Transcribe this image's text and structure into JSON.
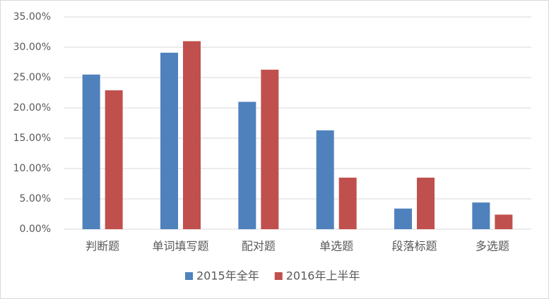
{
  "chart_data": {
    "type": "bar",
    "categories": [
      "判断题",
      "单词填写题",
      "配对题",
      "单选题",
      "段落标题",
      "多选题"
    ],
    "series": [
      {
        "name": "2015年全年",
        "color": "#4f81bd",
        "values": [
          25.5,
          29.1,
          21.0,
          16.3,
          3.4,
          4.4
        ]
      },
      {
        "name": "2016年上半年",
        "color": "#c0504d",
        "values": [
          22.9,
          31.0,
          26.3,
          8.5,
          8.5,
          2.4
        ]
      }
    ],
    "ylim": [
      0,
      35
    ],
    "yticks": [
      {
        "value": 0,
        "label": "0.00%"
      },
      {
        "value": 5,
        "label": "5.00%"
      },
      {
        "value": 10,
        "label": "10.00%"
      },
      {
        "value": 15,
        "label": "15.00%"
      },
      {
        "value": 20,
        "label": "20.00%"
      },
      {
        "value": 25,
        "label": "25.00%"
      },
      {
        "value": 30,
        "label": "30.00%"
      },
      {
        "value": 35,
        "label": "35.00%"
      }
    ],
    "grid": true,
    "legend": "bottom"
  }
}
